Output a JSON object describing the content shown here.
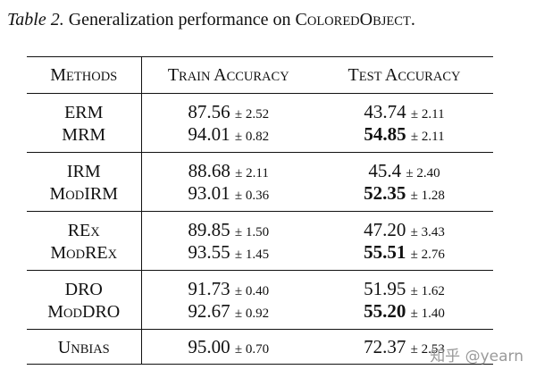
{
  "caption": {
    "label": "Table 2.",
    "text_before": " Generalization performance on ",
    "dataset_name": "ColoredObject",
    "text_after": "."
  },
  "table": {
    "headers": {
      "methods": "Methods",
      "train": "Train Accuracy",
      "test": "Test Accuracy"
    },
    "groups": [
      {
        "rows": [
          {
            "method": "ERM",
            "train": "87.56",
            "train_pm": "± 2.52",
            "test": "43.74",
            "test_pm": "± 2.11",
            "test_bold": false
          },
          {
            "method": "MRM",
            "train": "94.01",
            "train_pm": "± 0.82",
            "test": "54.85",
            "test_pm": "± 2.11",
            "test_bold": true
          }
        ]
      },
      {
        "rows": [
          {
            "method": "IRM",
            "train": "88.68",
            "train_pm": "± 2.11",
            "test": "45.4",
            "test_pm": "± 2.40",
            "test_bold": false
          },
          {
            "method": "ModIRM",
            "train": "93.01",
            "train_pm": "± 0.36",
            "test": "52.35",
            "test_pm": "± 1.28",
            "test_bold": true
          }
        ]
      },
      {
        "rows": [
          {
            "method": "REx",
            "train": "89.85",
            "train_pm": "± 1.50",
            "test": "47.20",
            "test_pm": "± 3.43",
            "test_bold": false
          },
          {
            "method": "ModREx",
            "train": "93.55",
            "train_pm": "± 1.45",
            "test": "55.51",
            "test_pm": "± 2.76",
            "test_bold": true
          }
        ]
      },
      {
        "rows": [
          {
            "method": "DRO",
            "train": "91.73",
            "train_pm": "± 0.40",
            "test": "51.95",
            "test_pm": "± 1.62",
            "test_bold": false
          },
          {
            "method": "ModDRO",
            "train": "92.67",
            "train_pm": "± 0.92",
            "test": "55.20",
            "test_pm": "± 1.40",
            "test_bold": true
          }
        ]
      },
      {
        "rows": [
          {
            "method": "Unbias",
            "train": "95.00",
            "train_pm": "± 0.70",
            "test": "72.37",
            "test_pm": "± 2.53",
            "test_bold": false
          }
        ]
      }
    ]
  },
  "watermark": "知乎 @yearn"
}
